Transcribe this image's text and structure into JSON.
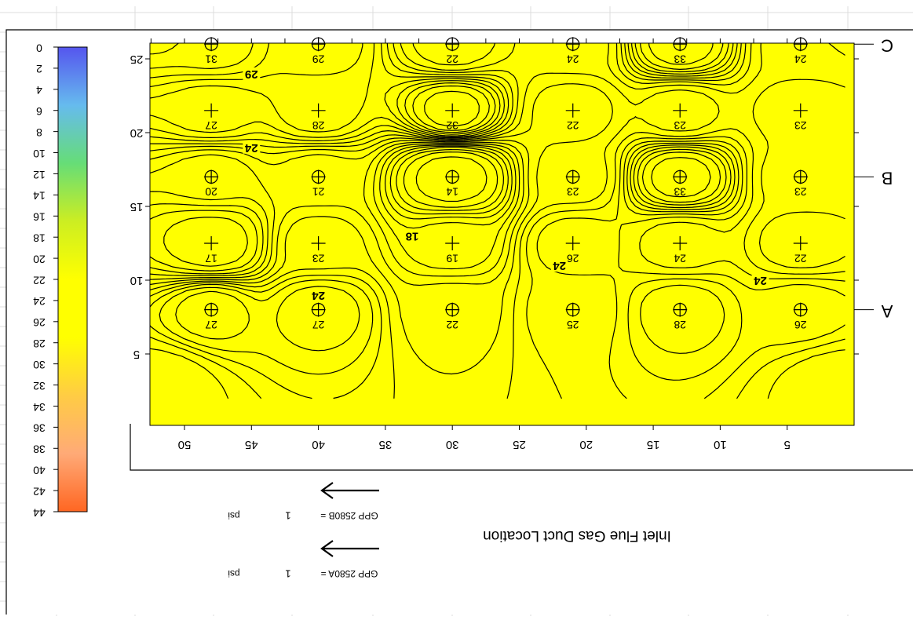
{
  "chart_data": {
    "type": "heatmap",
    "subtype": "contour map with sample points",
    "orientation": "rendered upside-down (rotated 180 degrees)",
    "title": "Inlet Flue Gas Duct Location",
    "x_axis": {
      "ticks": [
        5,
        10,
        15,
        20,
        25,
        30,
        35,
        40,
        45,
        50
      ],
      "range": [
        53,
        0
      ],
      "direction": "decreasing left-to-right (as displayed)"
    },
    "y_axis": {
      "ticks": [
        5,
        10,
        15,
        20,
        25
      ],
      "range": [
        2,
        28
      ]
    },
    "row_labels": [
      {
        "label": "A",
        "y": 8
      },
      {
        "label": "B",
        "y": 17
      },
      {
        "label": "C",
        "y": 26
      }
    ],
    "colorbar": {
      "ticks": [
        "0",
        "2",
        "4",
        "6",
        "8",
        "10",
        "12",
        "14",
        "16",
        "18",
        "20",
        "22",
        "24",
        "26",
        "28",
        "30",
        "32",
        "34",
        "36",
        "38",
        "40",
        "42",
        "44"
      ],
      "range": [
        0,
        44
      ],
      "gradient": [
        "#5555ee",
        "#66bbee",
        "#66dd77",
        "#ccee22",
        "#ffff00",
        "#ffff00",
        "#ffcc44",
        "#ffaa77",
        "#ff6622"
      ]
    },
    "fill_color": "#ffff00",
    "contour_labels": [
      {
        "value": "24",
        "x": 40,
        "y": 9
      },
      {
        "value": "24",
        "x": 22,
        "y": 11
      },
      {
        "value": "24",
        "x": 7,
        "y": 10
      },
      {
        "value": "18",
        "x": 33,
        "y": 13
      },
      {
        "value": "24",
        "x": 45,
        "y": 19
      },
      {
        "value": "29",
        "x": 45,
        "y": 24
      }
    ],
    "points": [
      {
        "x": 48,
        "y": 8,
        "value": "27",
        "marker": "circle"
      },
      {
        "x": 40,
        "y": 8,
        "value": "27",
        "marker": "circle"
      },
      {
        "x": 30,
        "y": 8,
        "value": "22",
        "marker": "circle"
      },
      {
        "x": 21,
        "y": 8,
        "value": "25",
        "marker": "circle"
      },
      {
        "x": 13,
        "y": 8,
        "value": "28",
        "marker": "circle"
      },
      {
        "x": 4,
        "y": 8,
        "value": "26",
        "marker": "circle"
      },
      {
        "x": 48,
        "y": 12.5,
        "value": "17",
        "marker": "plus"
      },
      {
        "x": 40,
        "y": 12.5,
        "value": "23",
        "marker": "plus"
      },
      {
        "x": 30,
        "y": 12.5,
        "value": "19",
        "marker": "plus"
      },
      {
        "x": 21,
        "y": 12.5,
        "value": "26",
        "marker": "plus"
      },
      {
        "x": 13,
        "y": 12.5,
        "value": "24",
        "marker": "plus"
      },
      {
        "x": 4,
        "y": 12.5,
        "value": "22",
        "marker": "plus"
      },
      {
        "x": 48,
        "y": 17,
        "value": "20",
        "marker": "circle"
      },
      {
        "x": 40,
        "y": 17,
        "value": "21",
        "marker": "circle"
      },
      {
        "x": 30,
        "y": 17,
        "value": "14",
        "marker": "circle"
      },
      {
        "x": 21,
        "y": 17,
        "value": "23",
        "marker": "circle"
      },
      {
        "x": 13,
        "y": 17,
        "value": "33",
        "marker": "circle"
      },
      {
        "x": 4,
        "y": 17,
        "value": "23",
        "marker": "circle"
      },
      {
        "x": 48,
        "y": 21.5,
        "value": "27",
        "marker": "plus"
      },
      {
        "x": 40,
        "y": 21.5,
        "value": "28",
        "marker": "plus"
      },
      {
        "x": 30,
        "y": 21.5,
        "value": "32",
        "marker": "plus"
      },
      {
        "x": 21,
        "y": 21.5,
        "value": "22",
        "marker": "plus"
      },
      {
        "x": 13,
        "y": 21.5,
        "value": "23",
        "marker": "plus"
      },
      {
        "x": 4,
        "y": 21.5,
        "value": "23",
        "marker": "plus"
      },
      {
        "x": 48,
        "y": 26,
        "value": "31",
        "marker": "circle"
      },
      {
        "x": 40,
        "y": 26,
        "value": "29",
        "marker": "circle"
      },
      {
        "x": 30,
        "y": 26,
        "value": "22",
        "marker": "circle"
      },
      {
        "x": 21,
        "y": 26,
        "value": "24",
        "marker": "circle"
      },
      {
        "x": 13,
        "y": 26,
        "value": "33",
        "marker": "circle"
      },
      {
        "x": 4,
        "y": 26,
        "value": "24",
        "marker": "circle"
      }
    ],
    "annotations": [
      {
        "name": "GPP 2580B =",
        "value": "1",
        "unit": "psi"
      },
      {
        "name": "GPP 2580A =",
        "value": "1",
        "unit": "psi"
      }
    ],
    "legend": "none"
  }
}
